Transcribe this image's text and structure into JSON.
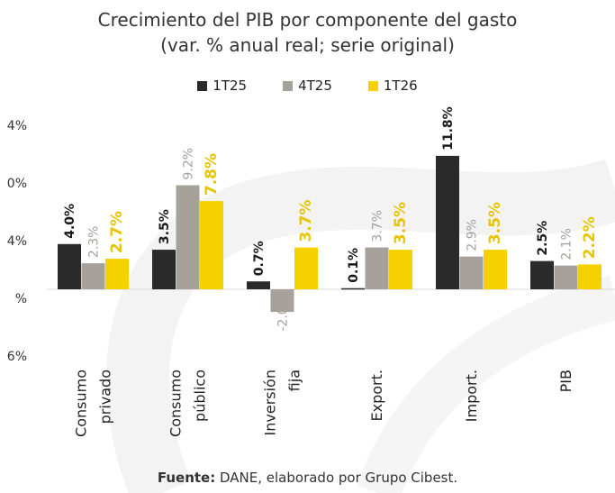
{
  "title_line1": "Crecimiento del PIB por componente del gasto",
  "title_line2": "(var. % anual real; serie original)",
  "source_bold": "Fuente:",
  "source_text": "DANE, elaborado por Grupo Cibest.",
  "chart_data": {
    "type": "bar",
    "title": "Crecimiento del PIB por componente del gasto",
    "subtitle": "(var. % anual real; serie original)",
    "categories": [
      [
        "Consumo",
        "privado"
      ],
      [
        "Consumo",
        "público"
      ],
      [
        "Inversión",
        "fija"
      ],
      [
        "Export."
      ],
      [
        "Import."
      ],
      [
        "PIB"
      ]
    ],
    "series": [
      {
        "name": "1T25",
        "color": "#2a2a2a",
        "label_color": "#1a1a1a",
        "values": [
          4.0,
          3.5,
          0.7,
          0.1,
          11.8,
          2.5
        ],
        "labels": [
          "4.0%",
          "3.5%",
          "0.7%",
          "0.1%",
          "11.8%",
          "2.5%"
        ]
      },
      {
        "name": "4T25",
        "color": "#a6a19b",
        "label_color": "#a6a19b",
        "values": [
          2.3,
          9.2,
          -2.0,
          3.7,
          2.9,
          2.1
        ],
        "labels": [
          "2.3%",
          "9.2%",
          "-2.0%",
          "3.7%",
          "2.9%",
          "2.1%"
        ]
      },
      {
        "name": "1T26",
        "color": "#f5d100",
        "label_color": "#e8c300",
        "values": [
          2.7,
          7.8,
          3.7,
          3.5,
          3.5,
          2.2
        ],
        "labels": [
          "2.7%",
          "7.8%",
          "3.7%",
          "3.5%",
          "3.5%",
          "2.2%"
        ]
      }
    ],
    "y_tick_labels": [
      "4%",
      "0%",
      "4%",
      "%",
      "6%"
    ],
    "legend_position": "top",
    "grid": false
  }
}
